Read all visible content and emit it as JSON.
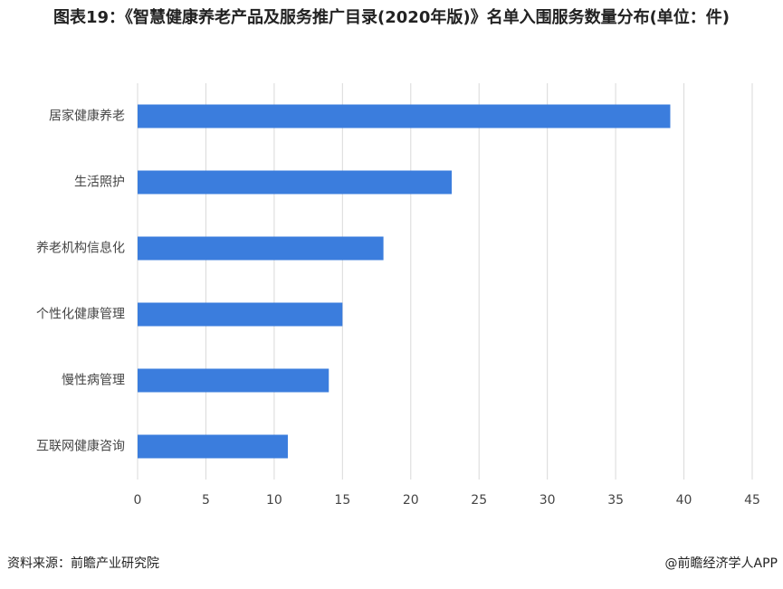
{
  "chart_data": {
    "type": "bar",
    "orientation": "horizontal",
    "title": "图表19：《智慧健康养老产品及服务推广目录(2020年版)》名单入围服务数量分布(单位：件)",
    "categories": [
      "居家健康养老",
      "生活照护",
      "养老机构信息化",
      "个性化健康管理",
      "慢性病管理",
      "互联网健康咨询"
    ],
    "values": [
      39,
      23,
      18,
      15,
      14,
      11
    ],
    "color": "#3b7ddd",
    "xlim": [
      0,
      45
    ],
    "xticks": [
      0,
      5,
      10,
      15,
      20,
      25,
      30,
      35,
      40,
      45
    ],
    "grid": true
  },
  "footer": {
    "source": "资料来源：前瞻产业研究院",
    "credit": "@前瞻经济学人APP"
  }
}
